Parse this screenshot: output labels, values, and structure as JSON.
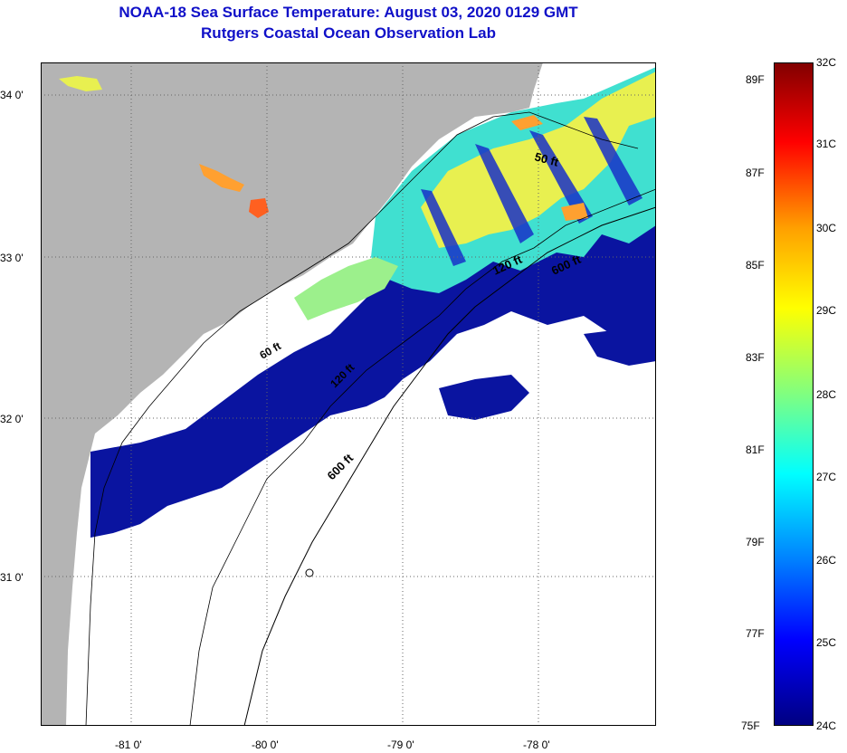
{
  "title": {
    "line1": "NOAA-18 Sea Surface Temperature:  August 03, 2020 0129 GMT",
    "line2": "Rutgers Coastal Ocean Observation Lab"
  },
  "map": {
    "lat_labels": [
      "34 0'",
      "33 0'",
      "32 0'",
      "31 0'"
    ],
    "lon_labels": [
      "-81 0'",
      "-80 0'",
      "-79 0'",
      "-78 0'"
    ],
    "isobath_labels": [
      "50 ft",
      "120 ft",
      "600 ft",
      "60 ft",
      "120 ft",
      "600 ft"
    ],
    "colors": {
      "land": "#b4b4b4",
      "cloud": "#ffffff",
      "cold_water": "#0a14a0"
    }
  },
  "colorbar": {
    "celsius_labels": [
      "32C",
      "31C",
      "30C",
      "29C",
      "28C",
      "27C",
      "26C",
      "25C",
      "24C"
    ],
    "fahrenheit_labels": [
      "89F",
      "87F",
      "85F",
      "83F",
      "81F",
      "79F",
      "77F",
      "75F"
    ],
    "range_c": [
      24,
      32
    ],
    "colors": [
      "#800000",
      "#ff0000",
      "#ffa000",
      "#ffff00",
      "#80ff80",
      "#00ffff",
      "#0080ff",
      "#0000ff",
      "#000080"
    ]
  }
}
